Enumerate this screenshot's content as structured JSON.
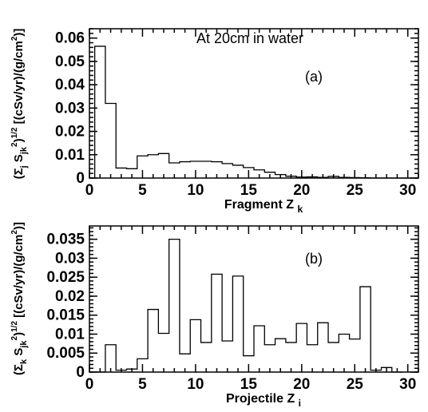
{
  "chart_data": [
    {
      "id": "a",
      "type": "histogram",
      "panel_label": "(a)",
      "annotation": "At 20cm in water",
      "xlabel": "Fragment Z",
      "xlabel_sub": "k",
      "ylabel": "(Σ_j S_jk^2)^1/2 [(cSv/yr)/(g/cm^2)]",
      "xlim": [
        0,
        31
      ],
      "ylim": [
        0,
        0.064
      ],
      "xticks": [
        0,
        5,
        10,
        15,
        20,
        25,
        30
      ],
      "yticks": [
        0,
        0.01,
        0.02,
        0.03,
        0.04,
        0.05,
        0.06
      ],
      "ytick_labels": [
        "0",
        "0.01",
        "0.02",
        "0.03",
        "0.04",
        "0.05",
        "0.06"
      ],
      "bin_edges": [
        0.5,
        1.5,
        2.5,
        3.5,
        4.5,
        5.5,
        6.5,
        7.5,
        8.5,
        9.5,
        10.5,
        11.5,
        12.5,
        13.5,
        14.5,
        15.5,
        16.5,
        17.5,
        18.5,
        19.5,
        20.5,
        21.5,
        22.5,
        23.5,
        24.5,
        25.5,
        26.5,
        27.5,
        28.5,
        29.5,
        30.5
      ],
      "values": [
        0.0565,
        0.032,
        0.0043,
        0.004,
        0.0095,
        0.01,
        0.0105,
        0.0065,
        0.007,
        0.0072,
        0.0072,
        0.007,
        0.0062,
        0.0055,
        0.0045,
        0.0035,
        0.0025,
        0.0015,
        0.0008,
        0.0004,
        0.0005,
        0.0003,
        0.0007,
        0.0003,
        0.0002,
        0.0001,
        0,
        0,
        0,
        0
      ]
    },
    {
      "id": "b",
      "type": "histogram",
      "panel_label": "(b)",
      "xlabel": "Projectile Z",
      "xlabel_sub": "i",
      "ylabel": "(Σ_k S_jk^2)^1/2 [(cSv/yr)/(g/cm^2)]",
      "xlim": [
        0,
        31
      ],
      "ylim": [
        0,
        0.0385
      ],
      "xticks": [
        0,
        5,
        10,
        15,
        20,
        25,
        30
      ],
      "yticks": [
        0,
        0.005,
        0.01,
        0.015,
        0.02,
        0.025,
        0.03,
        0.035
      ],
      "ytick_labels": [
        "0",
        "0.005",
        "0.01",
        "0.015",
        "0.02",
        "0.025",
        "0.03",
        "0.035"
      ],
      "bin_edges": [
        0.5,
        1.5,
        2.5,
        3.5,
        4.5,
        5.5,
        6.5,
        7.5,
        8.5,
        9.5,
        10.5,
        11.5,
        12.5,
        13.5,
        14.5,
        15.5,
        16.5,
        17.5,
        18.5,
        19.5,
        20.5,
        21.5,
        22.5,
        23.5,
        24.5,
        25.5,
        26.5,
        27.5,
        28.5,
        29.5
      ],
      "values": [
        0,
        0.0072,
        0.0005,
        0.0008,
        0.0035,
        0.0165,
        0.0102,
        0.035,
        0.0048,
        0.0138,
        0.0078,
        0.0258,
        0.0082,
        0.0253,
        0.0043,
        0.0122,
        0.0072,
        0.0088,
        0.0078,
        0.0128,
        0.0072,
        0.013,
        0.0078,
        0.01,
        0.0087,
        0.0225,
        0.0005,
        0.0012,
        0
      ]
    }
  ]
}
